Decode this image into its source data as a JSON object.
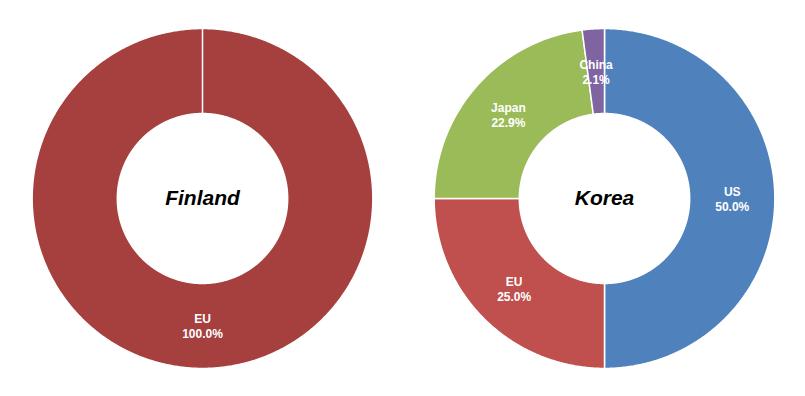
{
  "chart_data": [
    {
      "type": "donut",
      "title": "Finland",
      "categories": [
        "EU"
      ],
      "values": [
        100
      ],
      "value_labels": [
        "100.0%"
      ],
      "colors": [
        "#a5403f"
      ],
      "data_labels": true
    },
    {
      "type": "donut",
      "title": "Korea",
      "categories": [
        "US",
        "EU",
        "Japan",
        "China"
      ],
      "values": [
        50.0,
        25.0,
        22.9,
        2.1
      ],
      "value_labels": [
        "50.0%",
        "25.0%",
        "22.9%",
        "2.1%"
      ],
      "colors": [
        "#4f81bd",
        "#c0504d",
        "#9bbb59",
        "#8064a2"
      ],
      "data_labels": true
    }
  ]
}
